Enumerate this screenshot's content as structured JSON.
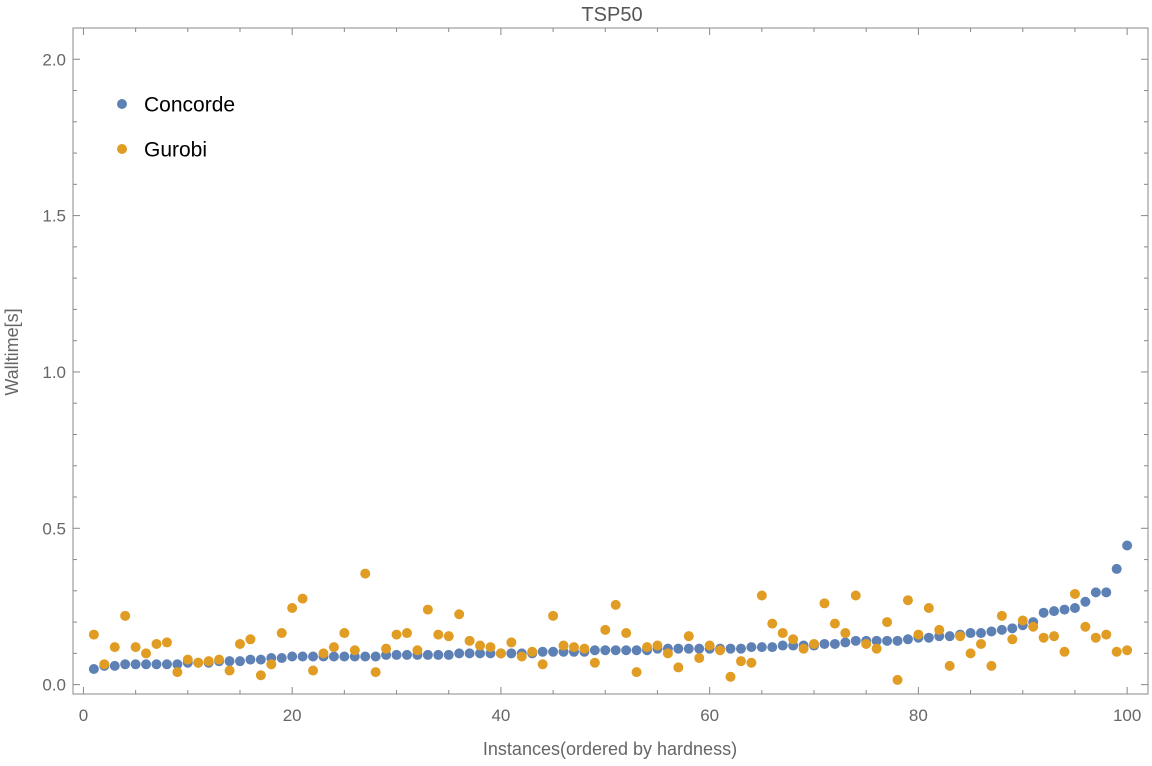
{
  "chart_data": {
    "type": "scatter",
    "title": "TSP50",
    "xlabel": "Instances(ordered by hardness)",
    "ylabel": "Walltime[s]",
    "xlim": [
      -1,
      102
    ],
    "ylim": [
      -0.03,
      2.1
    ],
    "x_ticks": [
      0,
      20,
      40,
      60,
      80,
      100
    ],
    "x_tick_labels": [
      "0",
      "20",
      "40",
      "60",
      "80",
      "100"
    ],
    "y_ticks": [
      0.0,
      0.5,
      1.0,
      1.5,
      2.0
    ],
    "y_tick_labels": [
      "0.0",
      "0.5",
      "1.0",
      "1.5",
      "2.0"
    ],
    "grid": false,
    "legend_position": "top-left",
    "x": [
      1,
      2,
      3,
      4,
      5,
      6,
      7,
      8,
      9,
      10,
      11,
      12,
      13,
      14,
      15,
      16,
      17,
      18,
      19,
      20,
      21,
      22,
      23,
      24,
      25,
      26,
      27,
      28,
      29,
      30,
      31,
      32,
      33,
      34,
      35,
      36,
      37,
      38,
      39,
      40,
      41,
      42,
      43,
      44,
      45,
      46,
      47,
      48,
      49,
      50,
      51,
      52,
      53,
      54,
      55,
      56,
      57,
      58,
      59,
      60,
      61,
      62,
      63,
      64,
      65,
      66,
      67,
      68,
      69,
      70,
      71,
      72,
      73,
      74,
      75,
      76,
      77,
      78,
      79,
      80,
      81,
      82,
      83,
      84,
      85,
      86,
      87,
      88,
      89,
      90,
      91,
      92,
      93,
      94,
      95,
      96,
      97,
      98,
      99,
      100
    ],
    "series": [
      {
        "name": "Concorde",
        "color": "#5e81b5",
        "values": [
          0.05,
          0.06,
          0.06,
          0.065,
          0.065,
          0.065,
          0.065,
          0.065,
          0.065,
          0.07,
          0.07,
          0.07,
          0.075,
          0.075,
          0.075,
          0.08,
          0.08,
          0.085,
          0.085,
          0.09,
          0.09,
          0.09,
          0.09,
          0.09,
          0.09,
          0.09,
          0.09,
          0.09,
          0.095,
          0.095,
          0.095,
          0.095,
          0.095,
          0.095,
          0.095,
          0.1,
          0.1,
          0.1,
          0.1,
          0.1,
          0.1,
          0.1,
          0.1,
          0.105,
          0.105,
          0.105,
          0.105,
          0.105,
          0.11,
          0.11,
          0.11,
          0.11,
          0.11,
          0.11,
          0.115,
          0.115,
          0.115,
          0.115,
          0.115,
          0.115,
          0.115,
          0.115,
          0.115,
          0.12,
          0.12,
          0.12,
          0.125,
          0.125,
          0.125,
          0.125,
          0.13,
          0.13,
          0.135,
          0.14,
          0.14,
          0.14,
          0.14,
          0.14,
          0.145,
          0.15,
          0.15,
          0.155,
          0.155,
          0.16,
          0.165,
          0.165,
          0.17,
          0.175,
          0.18,
          0.19,
          0.2,
          0.23,
          0.235,
          0.24,
          0.245,
          0.265,
          0.295,
          0.295,
          0.37,
          0.445
        ]
      },
      {
        "name": "Gurobi",
        "color": "#e19c24",
        "values": [
          0.16,
          0.065,
          0.12,
          0.22,
          0.12,
          0.1,
          0.13,
          0.135,
          0.04,
          0.08,
          0.07,
          0.075,
          0.08,
          0.045,
          0.13,
          0.145,
          0.03,
          0.065,
          0.165,
          0.245,
          0.275,
          0.045,
          0.1,
          0.12,
          0.165,
          0.11,
          0.355,
          0.04,
          0.115,
          0.16,
          0.165,
          0.11,
          0.24,
          0.16,
          0.155,
          0.225,
          0.14,
          0.125,
          0.12,
          0.1,
          0.135,
          0.09,
          0.105,
          0.065,
          0.22,
          0.125,
          0.12,
          0.115,
          0.07,
          0.175,
          0.255,
          0.165,
          0.04,
          0.12,
          0.125,
          0.1,
          0.055,
          0.155,
          0.085,
          0.125,
          0.11,
          0.025,
          0.075,
          0.07,
          0.285,
          0.195,
          0.165,
          0.145,
          0.115,
          0.13,
          0.26,
          0.195,
          0.165,
          0.285,
          0.13,
          0.115,
          0.2,
          0.015,
          0.27,
          0.16,
          0.245,
          0.175,
          0.06,
          0.155,
          0.1,
          0.13,
          0.06,
          0.22,
          0.145,
          0.205,
          0.185,
          0.15,
          0.155,
          0.105,
          0.29,
          0.185,
          0.15,
          0.16,
          0.105,
          0.11
        ]
      }
    ]
  }
}
